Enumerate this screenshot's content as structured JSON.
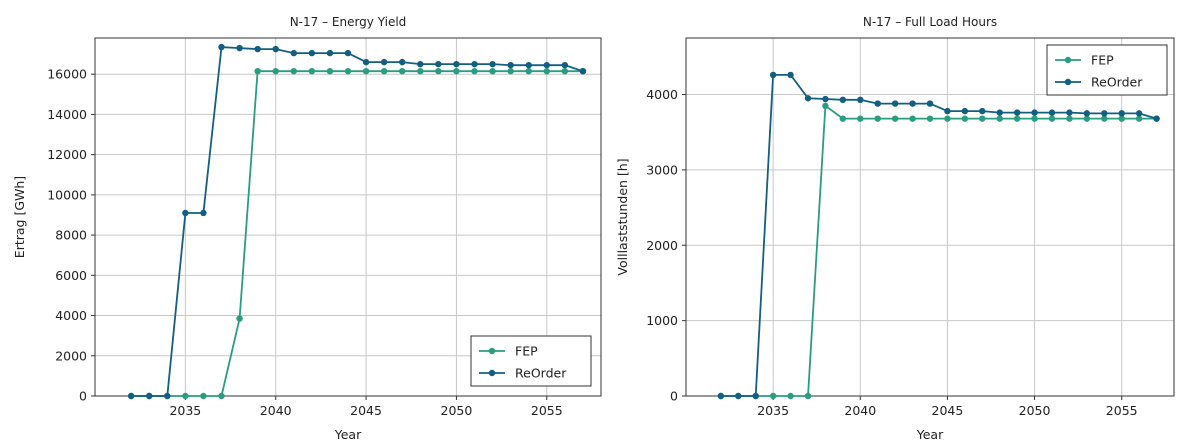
{
  "colors": {
    "FEP": "#2a9d80",
    "ReOrder": "#125f82"
  },
  "chart_data": [
    {
      "type": "line",
      "title": "N-17 – Energy Yield",
      "xlabel": "Year",
      "ylabel": "Ertrag [GWh]",
      "xlim": [
        2030,
        2058
      ],
      "ylim": [
        0,
        17800
      ],
      "xticks": [
        2035,
        2040,
        2045,
        2050,
        2055
      ],
      "yticks": [
        0,
        2000,
        4000,
        6000,
        8000,
        10000,
        12000,
        14000,
        16000
      ],
      "grid": true,
      "legend": "bottom-right",
      "x": [
        2032,
        2033,
        2034,
        2035,
        2036,
        2037,
        2038,
        2039,
        2040,
        2041,
        2042,
        2043,
        2044,
        2045,
        2046,
        2047,
        2048,
        2049,
        2050,
        2051,
        2052,
        2053,
        2054,
        2055,
        2056,
        2057
      ],
      "series": [
        {
          "name": "FEP",
          "values": [
            0,
            0,
            0,
            0,
            0,
            0,
            3850,
            16150,
            16150,
            16150,
            16150,
            16150,
            16150,
            16150,
            16150,
            16150,
            16150,
            16150,
            16150,
            16150,
            16150,
            16150,
            16150,
            16150,
            16150,
            16150
          ]
        },
        {
          "name": "ReOrder",
          "values": [
            0,
            0,
            0,
            9100,
            9100,
            17350,
            17300,
            17250,
            17250,
            17050,
            17050,
            17050,
            17050,
            16600,
            16600,
            16600,
            16500,
            16500,
            16500,
            16500,
            16500,
            16450,
            16450,
            16450,
            16450,
            16150
          ]
        }
      ]
    },
    {
      "type": "line",
      "title": "N-17 – Full Load Hours",
      "xlabel": "Year",
      "ylabel": "Volllaststunden [h]",
      "xlim": [
        2030,
        2058
      ],
      "ylim": [
        0,
        4750
      ],
      "xticks": [
        2035,
        2040,
        2045,
        2050,
        2055
      ],
      "yticks": [
        0,
        1000,
        2000,
        3000,
        4000
      ],
      "grid": true,
      "legend": "top-right",
      "x": [
        2032,
        2033,
        2034,
        2035,
        2036,
        2037,
        2038,
        2039,
        2040,
        2041,
        2042,
        2043,
        2044,
        2045,
        2046,
        2047,
        2048,
        2049,
        2050,
        2051,
        2052,
        2053,
        2054,
        2055,
        2056,
        2057
      ],
      "series": [
        {
          "name": "FEP",
          "values": [
            0,
            0,
            0,
            0,
            0,
            0,
            3850,
            3680,
            3680,
            3680,
            3680,
            3680,
            3680,
            3680,
            3680,
            3680,
            3680,
            3680,
            3680,
            3680,
            3680,
            3680,
            3680,
            3680,
            3680,
            3680
          ]
        },
        {
          "name": "ReOrder",
          "values": [
            0,
            0,
            0,
            4260,
            4260,
            3950,
            3940,
            3930,
            3930,
            3880,
            3880,
            3880,
            3880,
            3780,
            3780,
            3780,
            3760,
            3760,
            3760,
            3760,
            3760,
            3750,
            3750,
            3750,
            3750,
            3680
          ]
        }
      ]
    }
  ]
}
